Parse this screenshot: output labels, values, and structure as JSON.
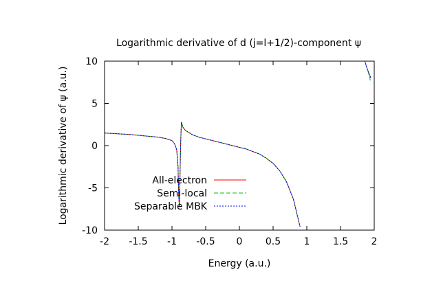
{
  "chart_data": {
    "type": "line",
    "title": "Logarithmic derivative of d (j=l+1/2)-component ψ",
    "xlabel": "Energy (a.u.)",
    "ylabel": "Logarithmic derivative of ψ (a.u.)",
    "xlim": [
      -2,
      2
    ],
    "ylim": [
      -10,
      10
    ],
    "xticks": [
      "-2",
      "-1.5",
      "-1",
      "-0.5",
      "0",
      "0.5",
      "1",
      "1.5",
      "2"
    ],
    "yticks": [
      "-10",
      "-5",
      "0",
      "5",
      "10"
    ],
    "grid": false,
    "legend_position": "bottom-left",
    "series": [
      {
        "name": "All-electron",
        "color": "#ff0000",
        "dash": "solid",
        "x": [
          -2.0,
          -1.8,
          -1.6,
          -1.4,
          -1.2,
          -1.1,
          -1.0,
          -0.96,
          -0.93,
          -0.91,
          -0.9,
          -0.89,
          -0.88,
          -0.87,
          -0.86,
          -0.84,
          -0.8,
          -0.7,
          -0.6,
          -0.5,
          -0.4,
          -0.3,
          -0.2,
          -0.1,
          0.0,
          0.1,
          0.2,
          0.3,
          0.4,
          0.5,
          0.6,
          0.7,
          0.8,
          0.9,
          1.0,
          1.1,
          1.2,
          1.3,
          1.4,
          1.45,
          1.5,
          1.52,
          null,
          1.83,
          1.86,
          1.9,
          1.95
        ],
        "y": [
          1.5,
          1.4,
          1.3,
          1.15,
          1.0,
          0.85,
          0.6,
          0.2,
          -0.5,
          -2.5,
          -6.0,
          -7.2,
          -3.0,
          0.5,
          2.8,
          2.2,
          1.8,
          1.3,
          1.0,
          0.8,
          0.6,
          0.4,
          0.2,
          0.0,
          -0.2,
          -0.4,
          -0.7,
          -1.0,
          -1.5,
          -2.1,
          -3.0,
          -4.3,
          -6.3,
          -9.6,
          null,
          null,
          null,
          null,
          null,
          null,
          null,
          null,
          null,
          11,
          10,
          9,
          8
        ]
      },
      {
        "name": "Semi-local",
        "color": "#00c000",
        "dash": "dash",
        "x": [
          -2.0,
          -1.8,
          -1.6,
          -1.4,
          -1.2,
          -1.1,
          -1.0,
          -0.96,
          -0.93,
          -0.91,
          -0.9,
          -0.89,
          -0.88,
          -0.87,
          -0.86,
          -0.84,
          -0.8,
          -0.7,
          -0.6,
          -0.5,
          -0.4,
          -0.3,
          -0.2,
          -0.1,
          0.0,
          0.1,
          0.2,
          0.3,
          0.4,
          0.5,
          0.6,
          0.7,
          0.8,
          0.9,
          1.0,
          1.1,
          1.2,
          1.3,
          1.4,
          1.45,
          1.5,
          1.52,
          null,
          1.83,
          1.86,
          1.9,
          1.95
        ],
        "y": [
          1.5,
          1.4,
          1.3,
          1.15,
          1.0,
          0.85,
          0.6,
          0.2,
          -0.5,
          -2.5,
          -6.0,
          -7.2,
          -3.0,
          0.5,
          2.8,
          2.2,
          1.8,
          1.3,
          1.0,
          0.8,
          0.6,
          0.4,
          0.2,
          0.0,
          -0.2,
          -0.4,
          -0.7,
          -1.0,
          -1.5,
          -2.1,
          -3.0,
          -4.3,
          -6.3,
          -9.6,
          null,
          null,
          null,
          null,
          null,
          null,
          null,
          null,
          null,
          11,
          10,
          9,
          7.5
        ]
      },
      {
        "name": "Separable MBK",
        "color": "#0000ff",
        "dash": "dot",
        "x": [
          -2.0,
          -1.8,
          -1.6,
          -1.4,
          -1.2,
          -1.1,
          -1.0,
          -0.96,
          -0.93,
          -0.91,
          -0.9,
          -0.89,
          -0.88,
          -0.87,
          -0.86,
          -0.84,
          -0.8,
          -0.7,
          -0.6,
          -0.5,
          -0.4,
          -0.3,
          -0.2,
          -0.1,
          0.0,
          0.1,
          0.2,
          0.3,
          0.4,
          0.5,
          0.6,
          0.7,
          0.8,
          0.9,
          1.0,
          1.1,
          1.2,
          1.3,
          1.4,
          1.45,
          1.5,
          1.52,
          null,
          1.83,
          1.86,
          1.9,
          1.95
        ],
        "y": [
          1.5,
          1.4,
          1.3,
          1.15,
          1.0,
          0.85,
          0.6,
          0.2,
          -0.5,
          -2.5,
          -6.0,
          -7.2,
          -3.0,
          0.5,
          2.8,
          2.2,
          1.8,
          1.3,
          1.0,
          0.8,
          0.6,
          0.4,
          0.2,
          0.0,
          -0.2,
          -0.4,
          -0.7,
          -1.0,
          -1.5,
          -2.1,
          -3.0,
          -4.3,
          -6.3,
          -9.6,
          null,
          null,
          null,
          null,
          null,
          null,
          null,
          null,
          null,
          11,
          10,
          9,
          8
        ]
      }
    ]
  }
}
